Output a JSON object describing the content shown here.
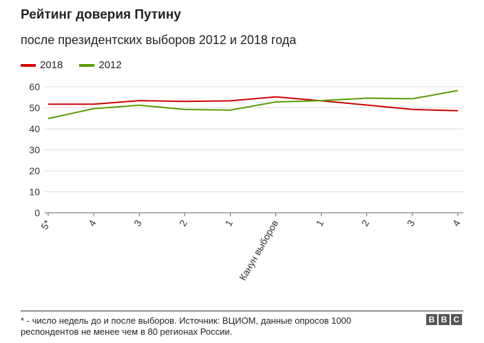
{
  "title": "Рейтинг доверия Путину",
  "subtitle": "после президентских выборов 2012 и 2018 года",
  "footnote": "* - число недель до и после выборов. Источник: ВЦИОМ, данные опросов 1000 респондентов не менее чем в 80 регионах России.",
  "logo_text": "BBC",
  "chart_data": {
    "type": "line",
    "categories": [
      "5*",
      "4",
      "3",
      "2",
      "1",
      "Канун выборов",
      "1",
      "2",
      "3",
      "4"
    ],
    "series": [
      {
        "name": "2018",
        "color": "#cc0000",
        "values": [
          51.7,
          51.7,
          53.4,
          53.0,
          53.3,
          55.2,
          53.3,
          51.3,
          49.2,
          48.6
        ]
      },
      {
        "name": "2012",
        "color": "#5a9a00",
        "values": [
          44.9,
          49.6,
          51.2,
          49.2,
          48.9,
          52.8,
          53.4,
          54.6,
          54.3,
          58.2
        ]
      }
    ],
    "yticks": [
      0,
      10,
      20,
      30,
      40,
      50,
      60
    ],
    "ylim": [
      0,
      60
    ],
    "grid": true,
    "legend_position": "top-left"
  }
}
